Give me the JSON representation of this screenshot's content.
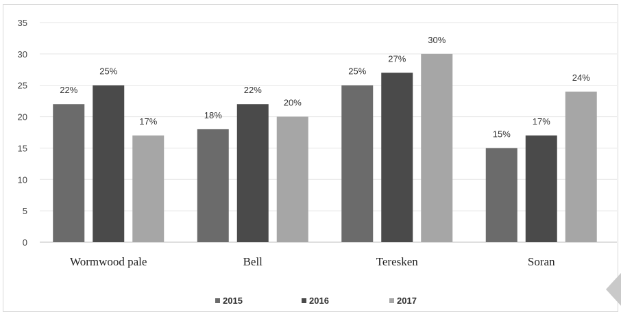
{
  "chart_data": {
    "type": "bar",
    "title": "",
    "xlabel": "",
    "ylabel": "",
    "ylim": [
      0,
      35
    ],
    "yticks": [
      0,
      5,
      10,
      15,
      20,
      25,
      30,
      35
    ],
    "grid": true,
    "legend_position": "bottom",
    "categories": [
      "Wormwood pale",
      "Bell",
      "Teresken",
      "Soran"
    ],
    "series": [
      {
        "name": "2015",
        "values": [
          22,
          18,
          25,
          15
        ],
        "labels": [
          "22%",
          "18%",
          "25%",
          "15%"
        ],
        "color": "#6b6b6b"
      },
      {
        "name": "2016",
        "values": [
          25,
          22,
          27,
          17
        ],
        "labels": [
          "25%",
          "22%",
          "27%",
          "17%"
        ],
        "color": "#4a4a4a"
      },
      {
        "name": "2017",
        "values": [
          17,
          20,
          30,
          24
        ],
        "labels": [
          "17%",
          "20%",
          "30%",
          "24%"
        ],
        "color": "#a6a6a6"
      }
    ]
  }
}
